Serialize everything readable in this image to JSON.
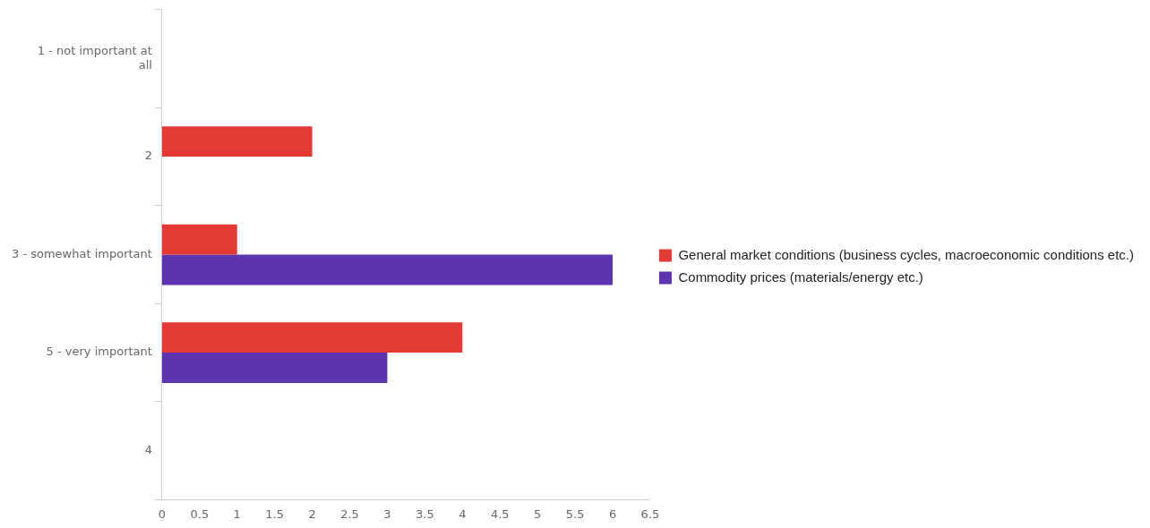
{
  "chart_data": {
    "type": "bar",
    "orientation": "horizontal",
    "categories": [
      "1 - not important at all",
      "2",
      "3 - somewhat important",
      "5 - very important",
      "4"
    ],
    "series": [
      {
        "name": "General market conditions (business cycles, macroeconomic conditions etc.)",
        "color": "#e53935",
        "values": [
          null,
          2,
          1,
          4,
          null
        ]
      },
      {
        "name": "Commodity prices (materials/energy etc.)",
        "color": "#5e35b1",
        "values": [
          null,
          null,
          6,
          3,
          null
        ]
      }
    ],
    "xlim": [
      0,
      6.5
    ],
    "xticks": [
      0,
      0.5,
      1,
      1.5,
      2,
      2.5,
      3,
      3.5,
      4,
      4.5,
      5,
      5.5,
      6,
      6.5
    ],
    "grid": false,
    "legend": "right"
  }
}
